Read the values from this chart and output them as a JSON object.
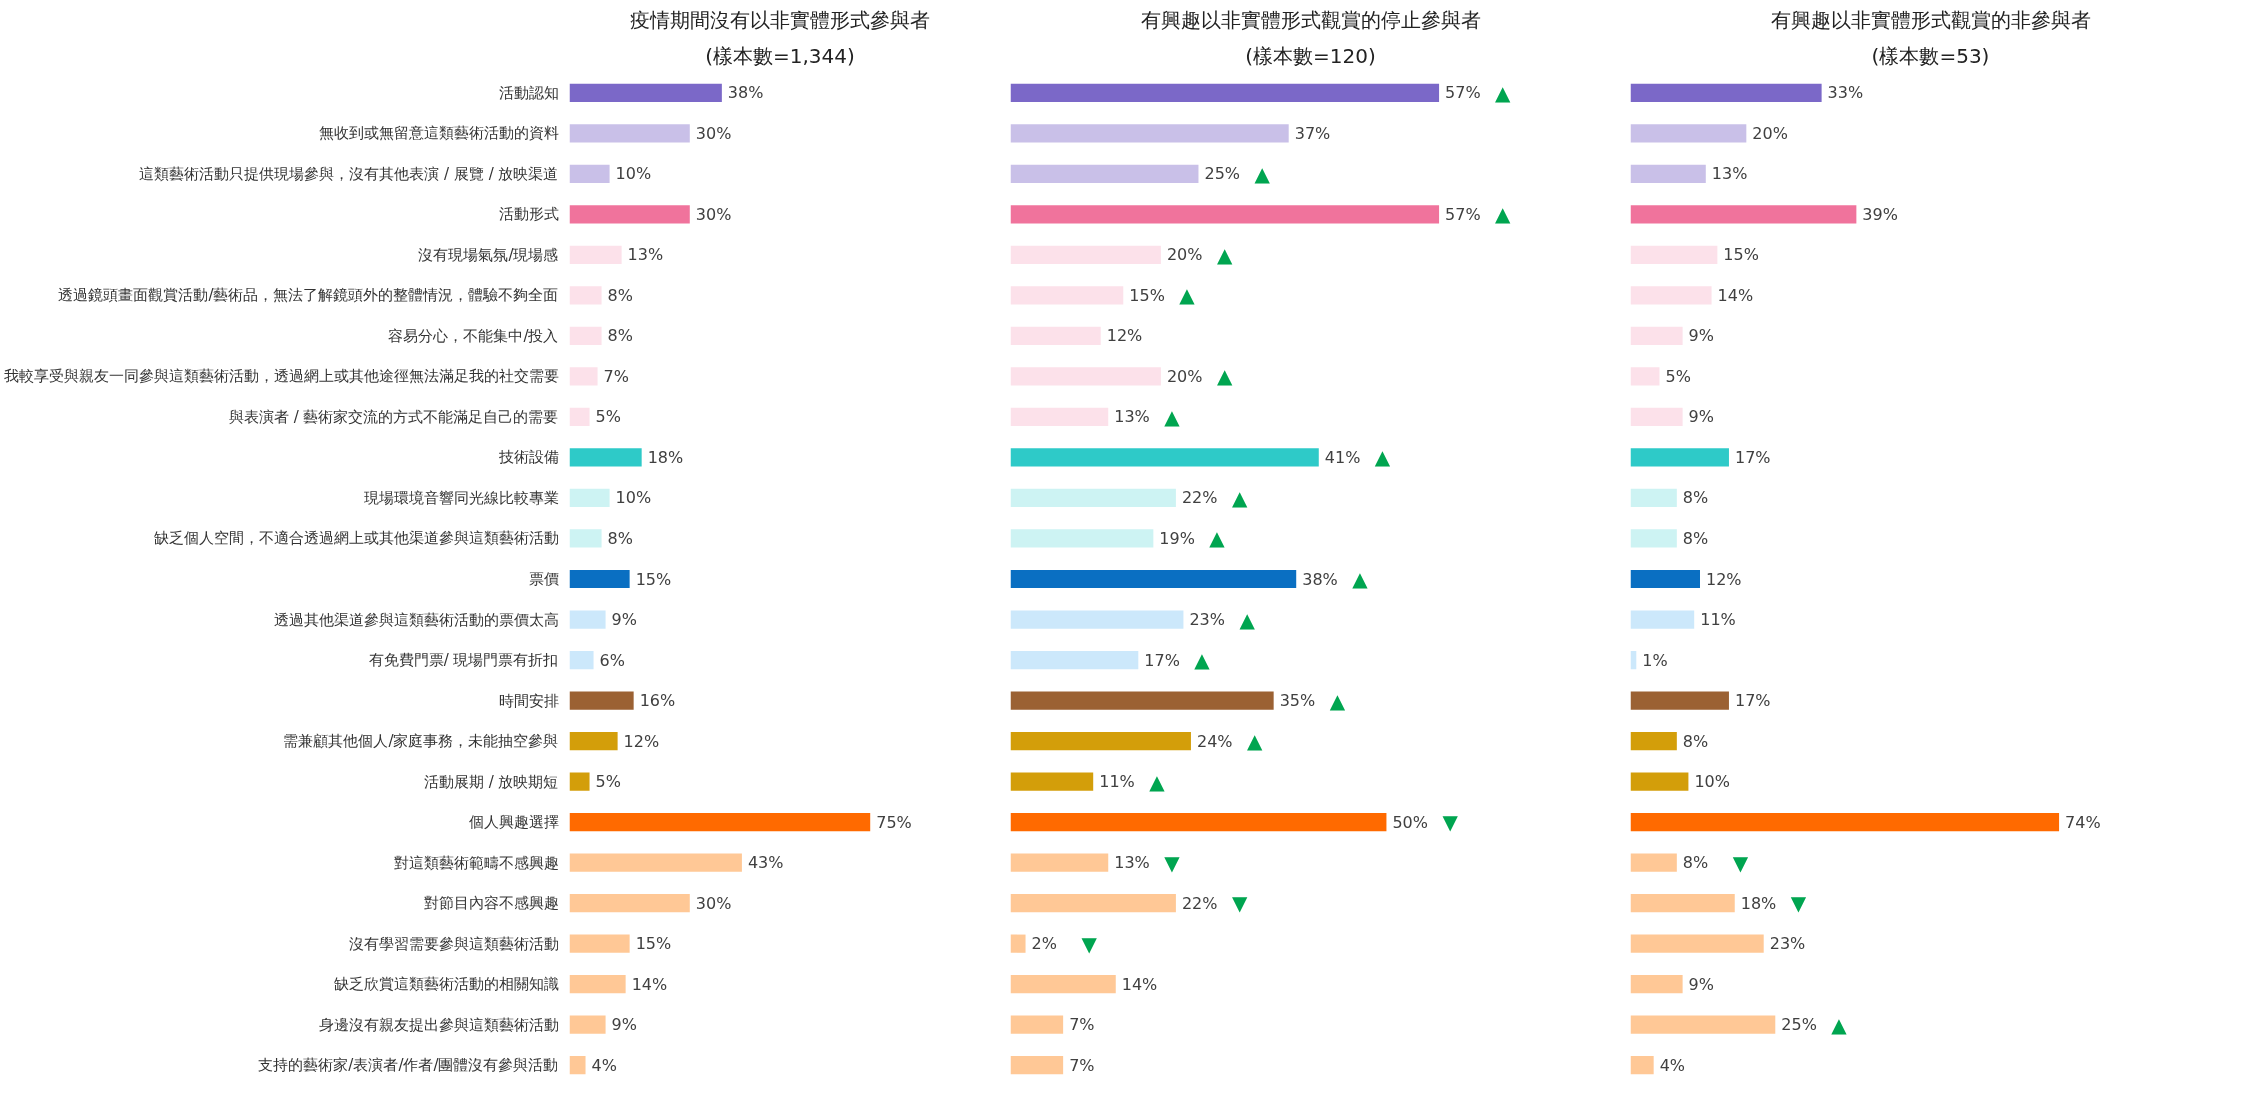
{
  "chart_data": [
    {
      "type": "bar",
      "orientation": "horizontal",
      "title": "疫情期間沒有以非實體形式參與者",
      "subtitle": "(樣本數=1,344)",
      "tick_labels": "y",
      "data_labels": true,
      "categories": [
        "活動認知",
        "無收到或無留意這類藝術活動的資料",
        "這類藝術活動只提供現場參與，沒有其他表演 / 展覽 / 放映渠道",
        "活動形式",
        "沒有現場氣氛/現場感",
        "透過鏡頭畫面觀賞活動/藝術品，無法了解鏡頭外的整體情況，體驗不夠全面",
        "容易分心，不能集中/投入",
        "我較享受與親友一同參與這類藝術活動，透過網上或其他途徑無法滿足我的社交需要",
        "與表演者 / 藝術家交流的方式不能滿足自己的需要",
        "技術設備",
        "現場環境音響同光線比較專業",
        "缺乏個人空間，不適合透過網上或其他渠道參與這類藝術活動",
        "票價",
        "透過其他渠道參與這類藝術活動的票價太高",
        "有免費門票/ 現場門票有折扣",
        "時間安排",
        "需兼顧其他個人/家庭事務，未能抽空參與",
        "活動展期 / 放映期短",
        "個人興趣選擇",
        "對這類藝術範疇不感興趣",
        "對節目內容不感興趣",
        "沒有學習需要參與這類藝術活動",
        "缺乏欣賞這類藝術活動的相關知識",
        "身邊沒有親友提出參與這類藝術活動",
        "支持的藝術家/表演者/作者/團體沒有參與活動"
      ],
      "values": [
        38,
        30,
        10,
        30,
        13,
        8,
        8,
        7,
        5,
        18,
        10,
        8,
        15,
        9,
        6,
        16,
        12,
        5,
        75,
        43,
        30,
        15,
        14,
        9,
        4
      ],
      "value_labels": [
        "38%",
        "30%",
        "10%",
        "30%",
        "13%",
        "8%",
        "8%",
        "7%",
        "5%",
        "18%",
        "10%",
        "8%",
        "15%",
        "9%",
        "6%",
        "16%",
        "12%",
        "5%",
        "75%",
        "43%",
        "30%",
        "15%",
        "14%",
        "9%",
        "4%"
      ],
      "colors": [
        "#7b68c8",
        "#c9c0e8",
        "#c9c0e8",
        "#f0739c",
        "#fce1ea",
        "#fce1ea",
        "#fce1ea",
        "#fce1ea",
        "#fce1ea",
        "#2ecac8",
        "#cdf3f3",
        "#cdf3f3",
        "#0a6fc2",
        "#cce8fb",
        "#cce8fb",
        "#9b6133",
        "#d39e0a",
        "#d39e0a",
        "#ff6a00",
        "#ffc896",
        "#ffc896",
        "#ffc896",
        "#ffc896",
        "#ffc896",
        "#ffc896"
      ]
    },
    {
      "type": "bar",
      "orientation": "horizontal",
      "title": "有興趣以非實體形式觀賞的停止參與者",
      "subtitle": "(樣本數=120)",
      "tick_labels": false,
      "data_labels": true,
      "categories": [
        null,
        null,
        null,
        null,
        null,
        null,
        null,
        null,
        null,
        null,
        null,
        null,
        null,
        null,
        null,
        null,
        null,
        null,
        null,
        null,
        null,
        null,
        null,
        null,
        null
      ],
      "values": [
        57,
        37,
        25,
        57,
        20,
        15,
        12,
        20,
        13,
        41,
        22,
        19,
        38,
        23,
        17,
        35,
        24,
        11,
        50,
        13,
        22,
        2,
        14,
        7,
        7
      ],
      "value_labels": [
        "57% ▲",
        "37%",
        "25% ▲",
        "57% ▲",
        "20% ▲",
        "15% ▲",
        "12%",
        "20% ▲",
        "13% ▲",
        "41% ▲",
        "22% ▲",
        "19% ▲",
        "38% ▲",
        "23% ▲",
        "17% ▲",
        "35% ▲",
        "24% ▲",
        "11% ▲",
        "50% ▼",
        "13% ▼",
        "22% ▼",
        "2% ▼",
        "14%",
        "7%",
        "7%"
      ],
      "colors": [
        "#7b68c8",
        "#c9c0e8",
        "#c9c0e8",
        "#f0739c",
        "#fce1ea",
        "#fce1ea",
        "#fce1ea",
        "#fce1ea",
        "#fce1ea",
        "#2ecac8",
        "#cdf3f3",
        "#cdf3f3",
        "#0a6fc2",
        "#cce8fb",
        "#cce8fb",
        "#9b6133",
        "#d39e0a",
        "#d39e0a",
        "#ff6a00",
        "#ffc896",
        "#ffc896",
        "#ffc896",
        "#ffc896",
        "#ffc896",
        "#ffc896"
      ]
    },
    {
      "type": "bar",
      "orientation": "horizontal",
      "title": "有興趣以非實體形式觀賞的非參與者",
      "subtitle": "(樣本數=53)",
      "tick_labels": false,
      "data_labels": true,
      "categories": [
        null,
        null,
        null,
        null,
        null,
        null,
        null,
        null,
        null,
        null,
        null,
        null,
        null,
        null,
        null,
        null,
        null,
        null,
        null,
        null,
        null,
        null,
        null,
        null,
        null
      ],
      "values": [
        33,
        20,
        13,
        39,
        15,
        14,
        9,
        5,
        9,
        17,
        8,
        8,
        12,
        11,
        1,
        17,
        8,
        10,
        74,
        8,
        18,
        23,
        9,
        25,
        4
      ],
      "value_labels": [
        "33%",
        "20%",
        "13%",
        "39%",
        "15%",
        "14%",
        "9%",
        "5%",
        "9%",
        "17%",
        "8%",
        "8%",
        "12%",
        "11%",
        "1%",
        "17%",
        "8%",
        "10%",
        "74%",
        "8% ▼",
        "18% ▼",
        "23%",
        "9%",
        "25% ▲",
        "4%"
      ],
      "colors": [
        "#7b68c8",
        "#c9c0e8",
        "#c9c0e8",
        "#f0739c",
        "#fce1ea",
        "#fce1ea",
        "#fce1ea",
        "#fce1ea",
        "#fce1ea",
        "#2ecac8",
        "#cdf3f3",
        "#cdf3f3",
        "#0a6fc2",
        "#cce8fb",
        "#cce8fb",
        "#9b6133",
        "#d39e0a",
        "#d39e0a",
        "#ff6a00",
        "#ffc896",
        "#ffc896",
        "#ffc896",
        "#ffc896",
        "#ffc896",
        "#ffc896"
      ]
    }
  ]
}
